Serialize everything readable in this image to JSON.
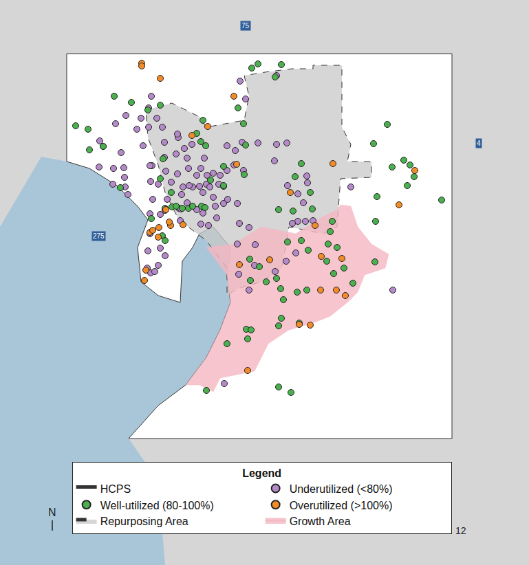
{
  "chart_data": {
    "type": "scatter",
    "tick_labels": false,
    "grid": false,
    "legend": "bottom",
    "legend_title": "Legend",
    "xlim": [
      0,
      769
    ],
    "ylim": [
      822,
      0
    ],
    "series": [
      {
        "name": "HCPS",
        "type": "area",
        "color": "#ffffff",
        "x": [
          97,
          657,
          657,
          187,
          230,
          270,
          300,
          320,
          335,
          330,
          335,
          310,
          290,
          280,
          265,
          262,
          230,
          205,
          200,
          215,
          200,
          170,
          130,
          97
        ],
        "y": [
          78,
          78,
          638,
          638,
          590,
          560,
          520,
          480,
          440,
          400,
          360,
          330,
          340,
          360,
          380,
          440,
          430,
          410,
          360,
          320,
          300,
          270,
          245,
          235
        ]
      },
      {
        "name": "Underutilized (<80%)",
        "type": "scatter",
        "color": "#b58ac9",
        "marker": "circle",
        "x": [
          145,
          150,
          168,
          176,
          183,
          199,
          205,
          216,
          228,
          208,
          221,
          239,
          241,
          259,
          268,
          272,
          258,
          266,
          280,
          286,
          292,
          301,
          310,
          320,
          325,
          300,
          305,
          290,
          275,
          249,
          243,
          260,
          272,
          286,
          295,
          313,
          325,
          331,
          345,
          318,
          236,
          258,
          279,
          297,
          330,
          342,
          352,
          402,
          417,
          399,
          340,
          354,
          330,
          144,
          165,
          180,
          164,
          181,
          182,
          218,
          219,
          230,
          222,
          240,
          263,
          264,
          218,
          233,
          218,
          215,
          233,
          230,
          240,
          214,
          219,
          225,
          348,
          362,
          371,
          370,
          400,
          347,
          433,
          444,
          455,
          425,
          416,
          430,
          446,
          447,
          418,
          441,
          433,
          510,
          571,
          362,
          326,
          402,
          349,
          357,
          375,
          220,
          216,
          186,
          262,
          292,
          315,
          303,
          345,
          295,
          310,
          256,
          239,
          274
        ],
        "y": [
          205,
          213,
          180,
          222,
          168,
          188,
          172,
          157,
          172,
          212,
          241,
          207,
          249,
          200,
          216,
          230,
          253,
          272,
          272,
          255,
          245,
          255,
          252,
          255,
          271,
          268,
          272,
          271,
          270,
          265,
          290,
          303,
          295,
          305,
          310,
          300,
          296,
          290,
          296,
          268,
          185,
          195,
          210,
          230,
          212,
          219,
          207,
          210,
          208,
          234,
          240,
          248,
          248,
          243,
          245,
          244,
          268,
          258,
          272,
          241,
          264,
          268,
          290,
          306,
          304,
          283,
          311,
          312,
          340,
          365,
          361,
          386,
          372,
          390,
          397,
          395,
          325,
          331,
          356,
          386,
          395,
          399,
          322,
          322,
          321,
          325,
          380,
          368,
          256,
          266,
          270,
          295,
          282,
          272,
          422,
          422,
          558,
          110,
          118,
          144,
          208,
          140,
          185,
          283,
          321,
          326,
          317,
          328,
          355,
          280,
          287,
          224,
          229,
          245
        ]
      },
      {
        "name": "Well-utilized (80-100%)",
        "type": "scatter",
        "color": "#4caf50",
        "marker": "circle",
        "x": [
          110,
          128,
          166,
          191,
          233,
          215,
          295,
          299,
          292,
          286,
          354,
          357,
          366,
          375,
          409,
          400,
          346,
          325,
          325,
          355,
          274,
          265,
          250,
          240,
          220,
          236,
          240,
          256,
          280,
          130,
          150,
          175,
          237,
          233,
          249,
          293,
          306,
          298,
          438,
          429,
          451,
          405,
          426,
          454,
          480,
          490,
          477,
          438,
          448,
          418,
          363,
          377,
          364,
          402,
          387,
          500,
          485,
          475,
          513,
          545,
          408,
          432,
          446,
          412,
          405,
          409,
          435,
          330,
          358,
          360,
          365,
          405,
          423,
          300,
          563,
          543,
          570,
          587,
          596,
          602,
          592,
          548,
          546,
          642,
          483
        ],
        "y": [
          183,
          188,
          140,
          149,
          153,
          160,
          175,
          212,
          206,
          194,
          180,
          211,
          99,
          93,
          94,
          112,
          157,
          242,
          270,
          254,
          303,
          303,
          301,
          303,
          318,
          343,
          350,
          300,
          300,
          218,
          213,
          273,
          231,
          260,
          280,
          300,
          262,
          302,
          238,
          257,
          280,
          305,
          307,
          304,
          337,
          360,
          355,
          350,
          364,
          352,
          377,
          388,
          408,
          405,
          410,
          390,
          398,
          380,
          412,
          381,
          420,
          425,
          422,
          436,
          474,
          463,
          470,
          500,
          479,
          493,
          480,
          563,
          571,
          568,
          181,
          209,
          243,
          233,
          240,
          257,
          270,
          286,
          322,
          291,
          322
        ]
      },
      {
        "name": "Overutilized (>100%)",
        "type": "scatter",
        "color": "#f28c28",
        "marker": "circle",
        "x": [
          206,
          206,
          233,
          279,
          302,
          340,
          344,
          484,
          603,
          580,
          422,
          218,
          222,
          231,
          248,
          266,
          246,
          241,
          230,
          212,
          210,
          458,
          467,
          497,
          466,
          489,
          502,
          435,
          451,
          360,
          348,
          392
        ],
        "y": [
          92,
          96,
          114,
          197,
          184,
          140,
          239,
          238,
          248,
          298,
          280,
          338,
          335,
          331,
          328,
          327,
          323,
          305,
          345,
          393,
          408,
          328,
          373,
          376,
          422,
          422,
          430,
          472,
          473,
          539,
          385,
          378
        ]
      },
      {
        "name": "Repurposing Area",
        "type": "area",
        "color": "#c8c8c8",
        "line_style": "dashed",
        "x": [
          212,
          250,
          290,
          300,
          355,
          362,
          355,
          385,
          425,
          455,
          455,
          497,
          497,
          510,
          505,
          540,
          540,
          495,
          490,
          470,
          420,
          410,
          380,
          345,
          330,
          330,
          300,
          260,
          240,
          230,
          215
        ],
        "y": [
          160,
          150,
          170,
          185,
          175,
          140,
          110,
          105,
          100,
          100,
          95,
          95,
          185,
          210,
          235,
          235,
          258,
          260,
          330,
          340,
          330,
          390,
          410,
          420,
          430,
          390,
          350,
          320,
          280,
          240,
          200
        ]
      },
      {
        "name": "Growth Area",
        "type": "area",
        "color": "#f4b6c2",
        "x": [
          300,
          340,
          380,
          430,
          470,
          490,
          495,
          510,
          520,
          540,
          565,
          560,
          530,
          520,
          505,
          480,
          455,
          420,
          390,
          370,
          320,
          310,
          290,
          270,
          300,
          320,
          335,
          330
        ],
        "y": [
          360,
          355,
          330,
          340,
          315,
          305,
          298,
          300,
          330,
          355,
          370,
          390,
          400,
          425,
          440,
          460,
          470,
          480,
          500,
          540,
          550,
          570,
          560,
          560,
          520,
          480,
          440,
          400
        ]
      }
    ],
    "annotations": [
      {
        "text": "75",
        "x": 357,
        "y": 37
      },
      {
        "text": "4",
        "x": 696,
        "y": 208
      },
      {
        "text": "275",
        "x": 143,
        "y": 343
      },
      {
        "text": "N",
        "x": 76,
        "y": 745
      },
      {
        "text": "12",
        "x": 670,
        "y": 772
      }
    ]
  }
}
